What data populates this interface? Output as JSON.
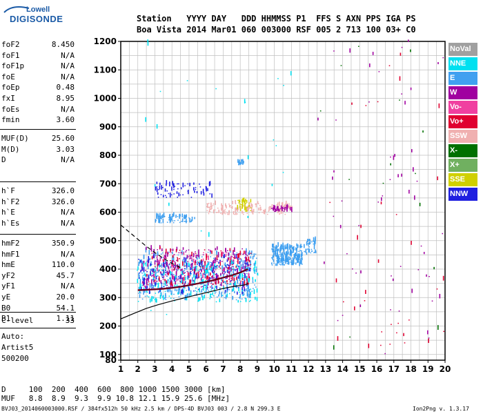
{
  "logo": {
    "line1": "Lowell",
    "line2": "DIGISONDE"
  },
  "header": {
    "row1": "Station   YYYY DAY   DDD HHMMSS P1  FFS S AXN PPS IGA PS",
    "row2": "Boa Vista 2014 Mar01 060 003000 RSF 005 2 713 100 03+ C0"
  },
  "params_group1": [
    {
      "name": "foF2",
      "value": "8.450"
    },
    {
      "name": "foF1",
      "value": "N/A"
    },
    {
      "name": "foF1p",
      "value": "N/A"
    },
    {
      "name": "foE",
      "value": "N/A"
    },
    {
      "name": "foEp",
      "value": "0.48"
    },
    {
      "name": "fxI",
      "value": "8.95"
    },
    {
      "name": "foEs",
      "value": "N/A"
    },
    {
      "name": "fmin",
      "value": "3.60"
    }
  ],
  "params_group2": [
    {
      "name": "MUF(D)",
      "value": "25.60"
    },
    {
      "name": "M(D)",
      "value": "3.03"
    },
    {
      "name": "D",
      "value": "N/A"
    }
  ],
  "params_group3": [
    {
      "name": "h`F",
      "value": "326.0"
    },
    {
      "name": "h`F2",
      "value": "326.0"
    },
    {
      "name": "h`E",
      "value": "N/A"
    },
    {
      "name": "h`Es",
      "value": "N/A"
    }
  ],
  "params_group4": [
    {
      "name": "hmF2",
      "value": "350.9"
    },
    {
      "name": "hmF1",
      "value": "N/A"
    },
    {
      "name": "hmE",
      "value": "110.0"
    },
    {
      "name": "yF2",
      "value": "45.7"
    },
    {
      "name": "yF1",
      "value": "N/A"
    },
    {
      "name": "yE",
      "value": "20.0"
    },
    {
      "name": "B0",
      "value": "54.1"
    },
    {
      "name": "B1",
      "value": "1.11"
    }
  ],
  "clevel": {
    "name": "C-level",
    "value": "33"
  },
  "scaling": {
    "line1": "Auto:",
    "line2": "Artist5",
    "line3": "500200"
  },
  "legend": [
    {
      "label": "NoVal",
      "color": "#a0a0a0"
    },
    {
      "label": "NNE",
      "color": "#00e0f0"
    },
    {
      "label": "E",
      "color": "#40a0f0"
    },
    {
      "label": "W",
      "color": "#a000a0"
    },
    {
      "label": "Vo-",
      "color": "#f040a0"
    },
    {
      "label": "Vo+",
      "color": "#e00030"
    },
    {
      "label": "SSW",
      "color": "#f0b0b0"
    },
    {
      "label": "X-",
      "color": "#007000"
    },
    {
      "label": "X+",
      "color": "#70b060"
    },
    {
      "label": "SSE",
      "color": "#d0d000"
    },
    {
      "label": "NNW",
      "color": "#2020e0"
    }
  ],
  "muf_table": {
    "d_row": "D     100  200  400  600  800 1000 1500 3000 [km]",
    "muf_row": "MUF   8.8  8.9  9.3  9.9 10.8 12.1 15.9 25.6 [MHz]"
  },
  "footer": {
    "left": "BVJ03_2014060003000.RSF / 384fx512h 50 kHz 2.5 km / DPS-4D BVJ03 003 / 2.8 N 299.3 E",
    "right": "Ion2Png v. 1.3.17"
  },
  "chart_data": {
    "type": "scatter",
    "title": "",
    "xlabel": "",
    "ylabel": "",
    "xlim": [
      1,
      20
    ],
    "ylim": [
      80,
      1200
    ],
    "x_ticks": [
      1,
      2,
      3,
      4,
      5,
      6,
      7,
      8,
      9,
      10,
      11,
      12,
      13,
      14,
      15,
      16,
      17,
      18,
      19,
      20
    ],
    "y_ticks": [
      80,
      100,
      200,
      300,
      400,
      500,
      600,
      700,
      800,
      900,
      1000,
      1100,
      1200
    ],
    "grid": true,
    "series": [
      {
        "name": "O-trace profile (hmF2)",
        "style": "solid-black",
        "x": [
          1.0,
          1.8,
          2.5,
          3.2,
          4.0,
          4.8,
          5.5,
          6.2,
          7.0,
          7.5,
          8.0,
          8.3,
          8.45
        ],
        "y": [
          225,
          245,
          262,
          275,
          288,
          300,
          310,
          320,
          332,
          338,
          342,
          345,
          350
        ]
      },
      {
        "name": "Virtual height trace",
        "style": "dark-red",
        "x": [
          2.0,
          2.5,
          3.0,
          3.5,
          4.0,
          4.5,
          5.0,
          5.5,
          6.0,
          6.5,
          7.0,
          7.5,
          8.0,
          8.45
        ],
        "y": [
          326,
          327,
          329,
          331,
          334,
          338,
          343,
          349,
          355,
          362,
          370,
          378,
          388,
          400
        ]
      },
      {
        "name": "Extraordinary extrapolation",
        "style": "dashed-black",
        "x": [
          1.0,
          1.5,
          2.0,
          2.5,
          3.0,
          3.5,
          4.0,
          4.5
        ],
        "y": [
          555,
          530,
          505,
          480,
          458,
          438,
          420,
          405
        ]
      }
    ],
    "echo_clusters": [
      {
        "color": "#40a0f0",
        "x": [
          2.0,
          9.0
        ],
        "y": [
          290,
          460
        ],
        "density": 420
      },
      {
        "color": "#a000a0",
        "x": [
          2.2,
          8.5
        ],
        "y": [
          330,
          470
        ],
        "density": 300
      },
      {
        "color": "#e00030",
        "x": [
          2.5,
          8.6
        ],
        "y": [
          340,
          470
        ],
        "density": 140
      },
      {
        "color": "#00e0f0",
        "x": [
          1.9,
          9.0
        ],
        "y": [
          280,
          420
        ],
        "density": 220
      },
      {
        "color": "#2020e0",
        "x": [
          2.0,
          8.6
        ],
        "y": [
          310,
          440
        ],
        "density": 160
      },
      {
        "color": "#f040a0",
        "x": [
          3.0,
          8.5
        ],
        "y": [
          350,
          460
        ],
        "density": 60
      },
      {
        "color": "#40a0f0",
        "x": [
          9.8,
          11.6
        ],
        "y": [
          410,
          480
        ],
        "density": 260
      },
      {
        "color": "#40a0f0",
        "x": [
          11.7,
          12.4
        ],
        "y": [
          450,
          500
        ],
        "density": 40
      },
      {
        "color": "#f0b0b0",
        "x": [
          6.0,
          11.0
        ],
        "y": [
          590,
          630
        ],
        "density": 160
      },
      {
        "color": "#d0d000",
        "x": [
          7.8,
          8.6
        ],
        "y": [
          600,
          640
        ],
        "density": 40
      },
      {
        "color": "#a000a0",
        "x": [
          9.8,
          11.0
        ],
        "y": [
          600,
          620
        ],
        "density": 40
      },
      {
        "color": "#40a0f0",
        "x": [
          3.0,
          5.3
        ],
        "y": [
          560,
          585
        ],
        "density": 70
      },
      {
        "color": "#2020e0",
        "x": [
          3.0,
          6.5
        ],
        "y": [
          650,
          700
        ],
        "density": 70
      },
      {
        "color": "#40a0f0",
        "x": [
          7.8,
          8.2
        ],
        "y": [
          765,
          780
        ],
        "density": 14
      },
      {
        "color": "#a000a0",
        "x": [
          12.5,
          20.0
        ],
        "y": [
          100,
          1200
        ],
        "density": 60
      },
      {
        "color": "#e00030",
        "x": [
          12.5,
          20.0
        ],
        "y": [
          100,
          1200
        ],
        "density": 35
      },
      {
        "color": "#007000",
        "x": [
          12.5,
          20.0
        ],
        "y": [
          100,
          1200
        ],
        "density": 15
      },
      {
        "color": "#00e0f0",
        "x": [
          1.5,
          12.0
        ],
        "y": [
          200,
          1200
        ],
        "density": 25
      }
    ]
  }
}
